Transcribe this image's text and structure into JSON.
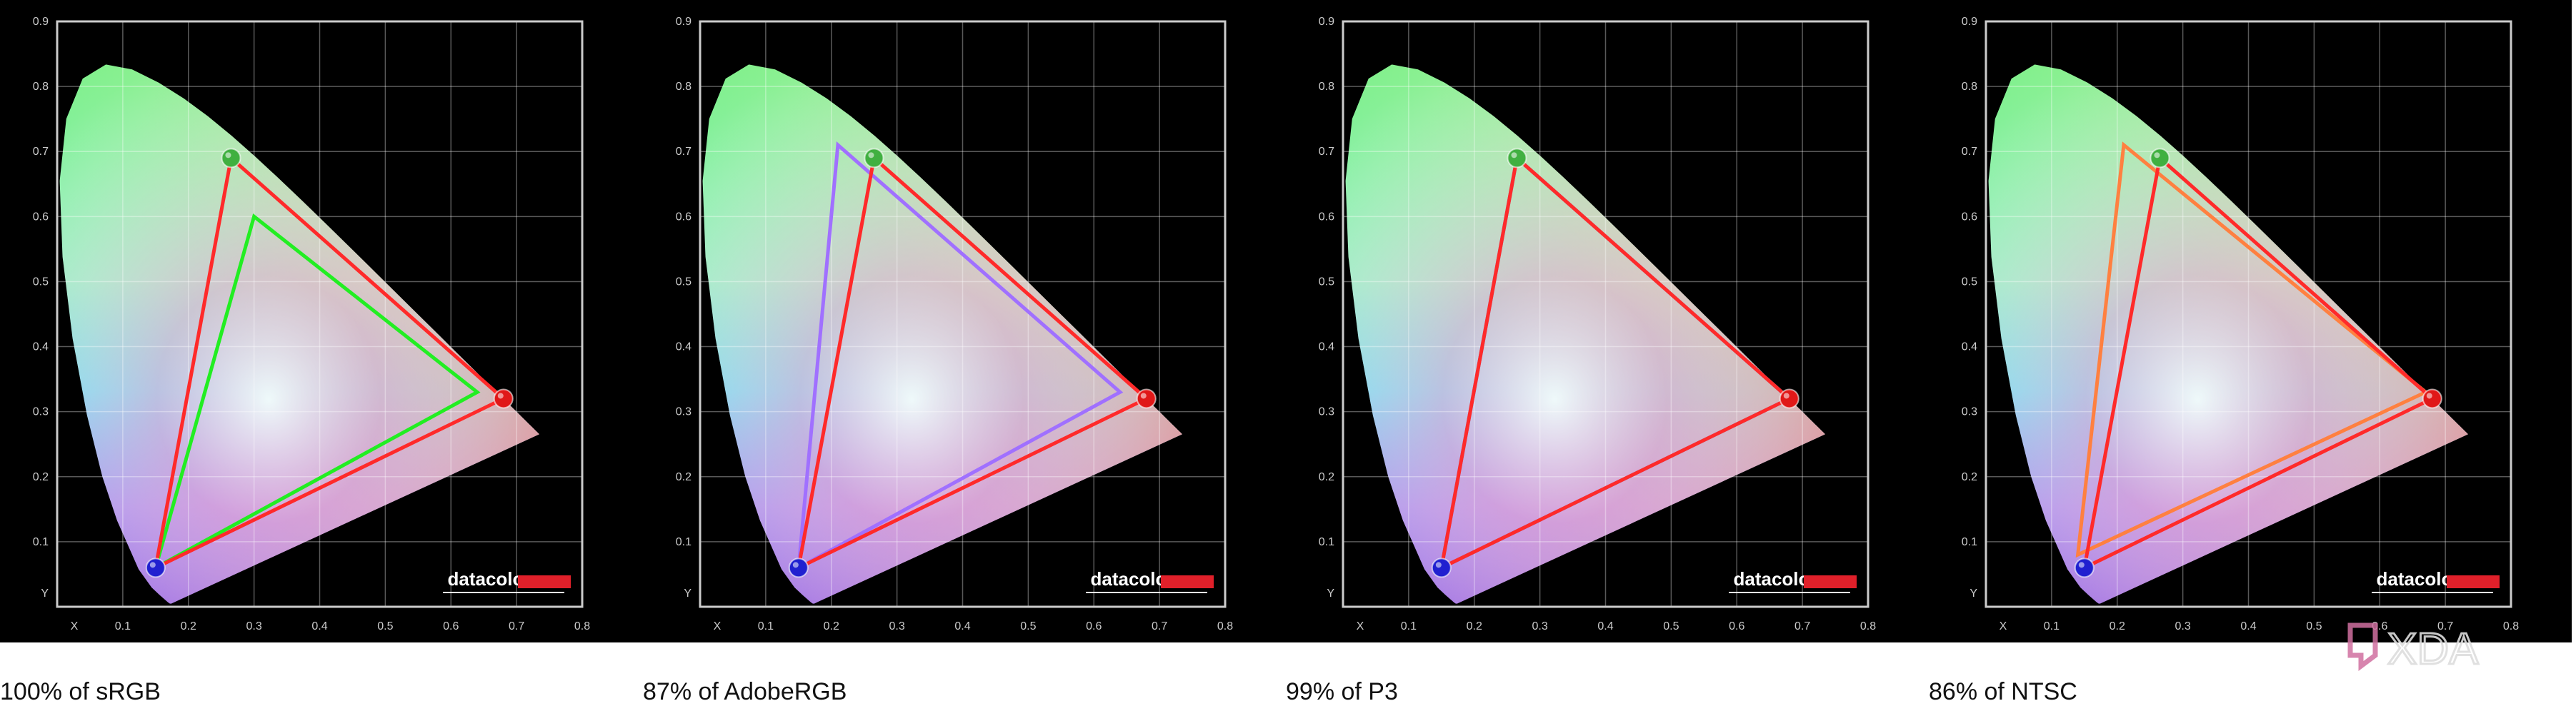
{
  "chart_data": [
    {
      "type": "scatter",
      "title": "",
      "xlabel": "x",
      "ylabel": "y",
      "xlim": [
        0,
        0.8
      ],
      "ylim": [
        0,
        0.9
      ],
      "xticks": [
        "0.1",
        "0.2",
        "0.3",
        "0.4",
        "0.5",
        "0.6",
        "0.7",
        "0.8"
      ],
      "yticks": [
        "0.1",
        "0.2",
        "0.3",
        "0.4",
        "0.5",
        "0.6",
        "0.7",
        "0.8",
        "0.9"
      ],
      "grid": true,
      "brand": "datacolor",
      "caption": "100% of sRGB",
      "series": [
        {
          "color": "#ff2a2a",
          "points": [
            [
              0.68,
              0.32
            ],
            [
              0.265,
              0.69
            ],
            [
              0.15,
              0.06
            ]
          ]
        },
        {
          "color": "#22ee22",
          "points": [
            [
              0.64,
              0.33
            ],
            [
              0.3,
              0.6
            ],
            [
              0.15,
              0.06
            ]
          ]
        }
      ]
    },
    {
      "type": "scatter",
      "title": "",
      "xlabel": "x",
      "ylabel": "y",
      "xlim": [
        0,
        0.8
      ],
      "ylim": [
        0,
        0.9
      ],
      "xticks": [
        "0.1",
        "0.2",
        "0.3",
        "0.4",
        "0.5",
        "0.6",
        "0.7",
        "0.8"
      ],
      "yticks": [
        "0.1",
        "0.2",
        "0.3",
        "0.4",
        "0.5",
        "0.6",
        "0.7",
        "0.8",
        "0.9"
      ],
      "grid": true,
      "brand": "datacolor",
      "caption": "87% of AdobeRGB",
      "series": [
        {
          "color": "#ff2a2a",
          "points": [
            [
              0.68,
              0.32
            ],
            [
              0.265,
              0.69
            ],
            [
              0.15,
              0.06
            ]
          ]
        },
        {
          "color": "#a070ff",
          "points": [
            [
              0.64,
              0.33
            ],
            [
              0.21,
              0.71
            ],
            [
              0.15,
              0.06
            ]
          ]
        }
      ]
    },
    {
      "type": "scatter",
      "title": "",
      "xlabel": "x",
      "ylabel": "y",
      "xlim": [
        0,
        0.8
      ],
      "ylim": [
        0,
        0.9
      ],
      "xticks": [
        "0.1",
        "0.2",
        "0.3",
        "0.4",
        "0.5",
        "0.6",
        "0.7",
        "0.8"
      ],
      "yticks": [
        "0.1",
        "0.2",
        "0.3",
        "0.4",
        "0.5",
        "0.6",
        "0.7",
        "0.8",
        "0.9"
      ],
      "grid": true,
      "brand": "datacolor",
      "caption": "99% of P3",
      "series": [
        {
          "color": "#ff2a2a",
          "points": [
            [
              0.68,
              0.32
            ],
            [
              0.265,
              0.69
            ],
            [
              0.15,
              0.06
            ]
          ]
        },
        {
          "color": "#4f8ff0",
          "points": [
            [
              0.68,
              0.32
            ],
            [
              0.265,
              0.69
            ],
            [
              0.15,
              0.06
            ]
          ]
        }
      ]
    },
    {
      "type": "scatter",
      "title": "",
      "xlabel": "x",
      "ylabel": "y",
      "xlim": [
        0,
        0.8
      ],
      "ylim": [
        0,
        0.9
      ],
      "xticks": [
        "0.1",
        "0.2",
        "0.3",
        "0.4",
        "0.5",
        "0.6",
        "0.7",
        "0.8"
      ],
      "yticks": [
        "0.1",
        "0.2",
        "0.3",
        "0.4",
        "0.5",
        "0.6",
        "0.7",
        "0.8",
        "0.9"
      ],
      "grid": true,
      "brand": "datacolor",
      "caption": "86% of NTSC",
      "series": [
        {
          "color": "#ff2a2a",
          "points": [
            [
              0.68,
              0.32
            ],
            [
              0.265,
              0.69
            ],
            [
              0.15,
              0.06
            ]
          ]
        },
        {
          "color": "#ff8040",
          "points": [
            [
              0.67,
              0.33
            ],
            [
              0.21,
              0.71
            ],
            [
              0.14,
              0.08
            ]
          ]
        }
      ]
    }
  ],
  "watermark": {
    "text": "XDA"
  }
}
